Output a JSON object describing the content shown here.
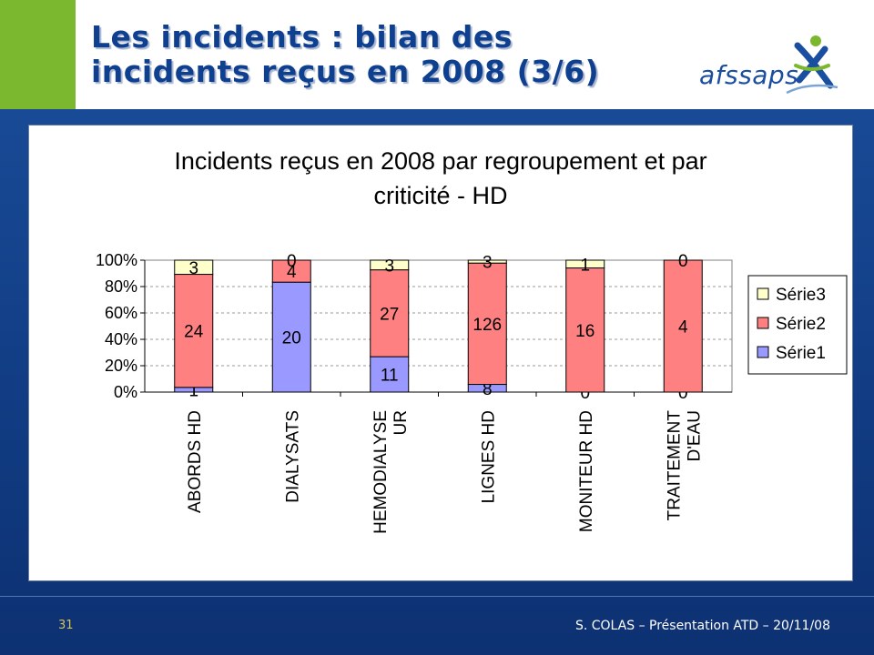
{
  "slide": {
    "title_line1": "Les incidents : bilan des",
    "title_line2": "incidents reçus en 2008 (3/6)",
    "logo_text": "afssaps",
    "page_number": "31",
    "footer": "S. COLAS – Présentation ATD – 20/11/08"
  },
  "colors": {
    "accent_green": "#7cb82f",
    "title_blue": "#0f3f8f",
    "serie1": "#9999ff",
    "serie2": "#ff8080",
    "serie3": "#ffffcc"
  },
  "chart_data": {
    "type": "bar",
    "stacked": "percent",
    "title_lines": [
      "Incidents reçus en 2008 par regroupement et par",
      "criticité - HD"
    ],
    "categories": [
      [
        "ABORDS HD"
      ],
      [
        "DIALYSATS"
      ],
      [
        "HEMODIALYSE",
        "UR"
      ],
      [
        "LIGNES HD"
      ],
      [
        "MONITEUR HD"
      ],
      [
        "TRAITEMENT",
        "D'EAU"
      ]
    ],
    "series": [
      {
        "name": "Série1",
        "values": [
          1,
          20,
          11,
          8,
          0,
          0
        ]
      },
      {
        "name": "Série2",
        "values": [
          24,
          4,
          27,
          126,
          16,
          4
        ]
      },
      {
        "name": "Série3",
        "values": [
          3,
          0,
          3,
          3,
          1,
          0
        ]
      }
    ],
    "y_ticks": [
      "0%",
      "20%",
      "40%",
      "60%",
      "80%",
      "100%"
    ],
    "ylim": [
      0,
      100
    ],
    "grid": true,
    "legend": "right"
  }
}
